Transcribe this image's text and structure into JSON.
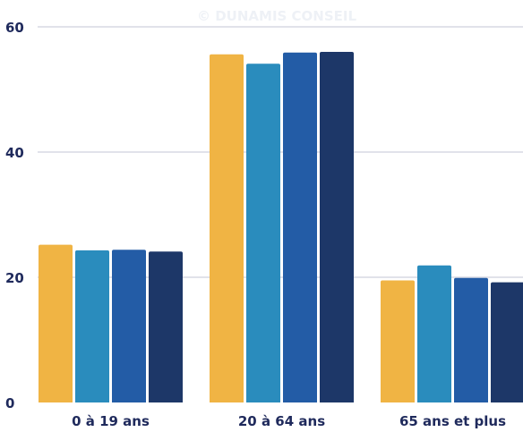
{
  "watermark": "© DUNAMIS CONSEIL",
  "chart_data": {
    "type": "bar",
    "title": "",
    "xlabel": "",
    "ylabel": "",
    "ylim": [
      0,
      60
    ],
    "yticks": [
      0,
      20,
      40,
      60
    ],
    "grid": true,
    "categories": [
      "0 à 19 ans",
      "20 à 64 ans",
      "65 ans et plus"
    ],
    "series": [
      {
        "color": "#f0b444",
        "values": [
          25.2,
          55.6,
          19.5
        ]
      },
      {
        "color": "#2a8cbd",
        "values": [
          24.3,
          54.1,
          21.9
        ]
      },
      {
        "color": "#235ca6",
        "values": [
          24.4,
          55.9,
          19.9
        ]
      },
      {
        "color": "#1d3768",
        "values": [
          24.1,
          56.0,
          19.2
        ]
      }
    ]
  }
}
